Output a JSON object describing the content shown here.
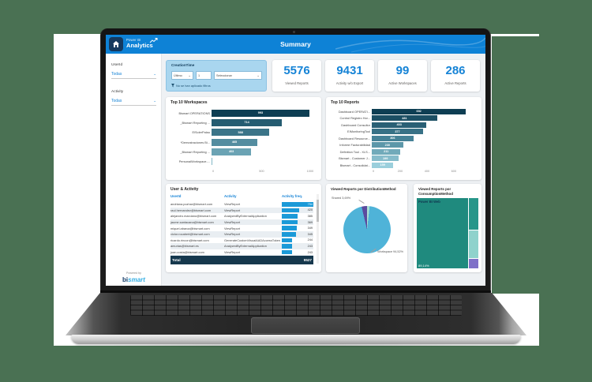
{
  "frame": {
    "bg_green": "#4a7153",
    "backdrop_white": "#ffffff"
  },
  "app": {
    "title": "Summary",
    "logo": {
      "brand_top": "Power BI",
      "brand_bottom": "Analytics"
    }
  },
  "sidebar": {
    "filters": [
      {
        "label": "UserId",
        "value": "Todas"
      },
      {
        "label": "Activity",
        "value": "Todas"
      }
    ],
    "powered_by": "Powered by",
    "brand": {
      "bi": "bi",
      "smart": "smart"
    }
  },
  "filter_card": {
    "title": "CreationTime",
    "dropdown_period": "Último",
    "input_value": "1",
    "dropdown_select": "Seleccionar",
    "note": "No se han aplicado filtros"
  },
  "kpis": [
    {
      "value": "5576",
      "label": "Viewed Reports"
    },
    {
      "value": "9431",
      "label": "Activity w/o Export"
    },
    {
      "value": "99",
      "label": "Active Workspaces"
    },
    {
      "value": "286",
      "label": "Active Reports"
    }
  ],
  "chart_data": [
    {
      "type": "bar",
      "title": "Top 10 Workspaces",
      "orientation": "horizontal",
      "categories": [
        "Bismart OPERATIONS",
        "_Bismart Reporting ...",
        "ElSolerPalau",
        "*Demostraciones Bi...",
        "_Bismart Reporting ...",
        "PersonalWorkspace-..."
      ],
      "values": [
        993,
        714,
        588,
        465,
        403,
        null
      ],
      "bar_colors": [
        "#0e3e53",
        "#255c71",
        "#3b7488",
        "#548da0",
        "#6ba3b4",
        "#82b7c6"
      ],
      "xticks": [
        0,
        500,
        1000
      ],
      "xmax": 1050,
      "xlabel": "",
      "ylabel": "",
      "grid": false
    },
    {
      "type": "bar",
      "title": "Top 10 Reports",
      "orientation": "horizontal",
      "categories": [
        "Dashboard OPERATI...",
        "Control Registro Hor...",
        "Dashboard Consultor",
        "EIMonitoringTool",
        "Dashboard Resource...",
        "Informe Facturabilidad",
        "Definition Tool - XLS...",
        "Bismart - Customer J...",
        "Bismart - Consolidat..."
      ],
      "values": [
        692,
        481,
        403,
        377,
        306,
        230,
        211,
        199,
        159
      ],
      "bar_colors": [
        "#0e3e53",
        "#1c4f64",
        "#2a6075",
        "#387186",
        "#468297",
        "#5d97a9",
        "#71aaba",
        "#86bccb",
        "#9bcfdc"
      ],
      "xticks": [
        0,
        200,
        400,
        600
      ],
      "xmax": 760,
      "xlabel": "",
      "ylabel": "",
      "grid": false
    },
    {
      "type": "table",
      "title": "User & Activity",
      "headers": [
        "UserId",
        "Activity",
        "Activity freq."
      ],
      "rows": [
        [
          "andriana.pozhar@bismart.com",
          "ViewReport",
          754
        ],
        [
          "raul.hernandez@bismart.com",
          "ViewReport",
          420
        ],
        [
          "alejandro.marciano@bismart.com",
          "AnalyzedByExternalApplication",
          385
        ],
        [
          "jaume.santacana@bismart.com",
          "ViewReport",
          369
        ],
        [
          "miquel.abarca@bismart.com",
          "ViewReport",
          349
        ],
        [
          "victor.rocabert@bismart.com",
          "ViewReport",
          345
        ],
        [
          "ricardo.rincon@bismart.com",
          "GenerateCustomVisualAADAccessToken",
          244
        ],
        [
          "amurias@bismart.es",
          "AnalyzedByExternalApplication",
          243
        ],
        [
          "juan.costa@bismart.com",
          "ViewReport",
          243
        ],
        [
          "joan.bosch@bismart.es",
          "ViewReport",
          236
        ]
      ],
      "total_label": "Total",
      "total_value": "9527",
      "freq_max": 754,
      "bar_color": "#1b9ad8"
    },
    {
      "type": "pie",
      "title": "Viewed Reports por DistributionMethod",
      "slices": [
        {
          "label": "Shared",
          "pct": 3.69,
          "color": "#5b4a9e"
        },
        {
          "label": "Other",
          "pct": 1.79,
          "color": "#aadfd3"
        },
        {
          "label": "Workspace",
          "pct": 94.52,
          "color": "#4fb3d8"
        }
      ],
      "start_deg": -13.3,
      "annotations": [
        {
          "text": "Shared 3,69%"
        },
        {
          "text": "Workspace 94,52%"
        }
      ]
    },
    {
      "type": "treemap",
      "title": "Viewed Reports por ConsumptionMethod",
      "blocks": [
        {
          "label": "Power BI Web",
          "pct_label": "89,14%",
          "share": 89.14,
          "color": "#1f8a7e"
        },
        {
          "label": "",
          "pct_label": "",
          "share": 4.9,
          "color": "#27968a"
        },
        {
          "label": "",
          "pct_label": "",
          "share": 4.2,
          "color": "#8fd2cc"
        },
        {
          "label": "",
          "pct_label": "",
          "share": 1.5,
          "color": "#7f71c8"
        }
      ]
    }
  ]
}
